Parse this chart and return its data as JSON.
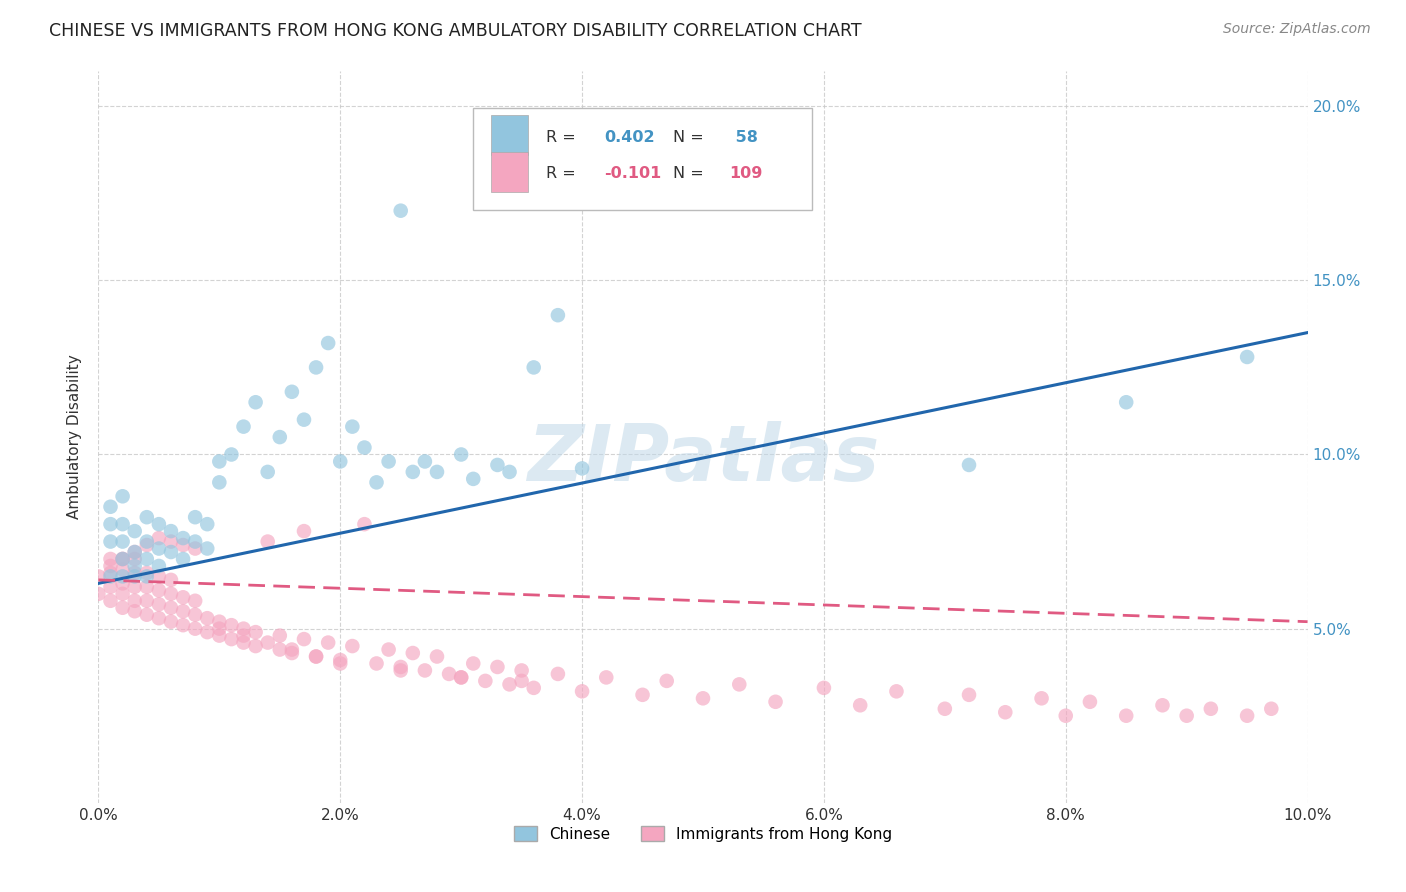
{
  "title": "CHINESE VS IMMIGRANTS FROM HONG KONG AMBULATORY DISABILITY CORRELATION CHART",
  "source": "Source: ZipAtlas.com",
  "ylabel": "Ambulatory Disability",
  "x_min": 0.0,
  "x_max": 0.1,
  "y_min": 0.0,
  "y_max": 0.21,
  "x_ticks": [
    0.0,
    0.02,
    0.04,
    0.06,
    0.08,
    0.1
  ],
  "y_ticks": [
    0.05,
    0.1,
    0.15,
    0.2
  ],
  "x_tick_labels": [
    "0.0%",
    "2.0%",
    "4.0%",
    "6.0%",
    "8.0%",
    "10.0%"
  ],
  "y_tick_labels": [
    "5.0%",
    "10.0%",
    "15.0%",
    "20.0%"
  ],
  "legend_label1": "Chinese",
  "legend_label2": "Immigrants from Hong Kong",
  "R1": 0.402,
  "N1": 58,
  "R2": -0.101,
  "N2": 109,
  "color_blue": "#92c5de",
  "color_pink": "#f4a6c0",
  "color_blue_line": "#2166ac",
  "color_pink_line": "#e05a82",
  "color_blue_text": "#4393c3",
  "color_pink_text": "#e05a82",
  "watermark": "ZIPatlas",
  "background_color": "#ffffff",
  "grid_color": "#c8c8c8",
  "blue_line_y0": 0.063,
  "blue_line_y1": 0.135,
  "pink_line_y0": 0.064,
  "pink_line_y1": 0.052,
  "chinese_x": [
    0.001,
    0.001,
    0.001,
    0.002,
    0.002,
    0.002,
    0.002,
    0.003,
    0.003,
    0.003,
    0.004,
    0.004,
    0.004,
    0.005,
    0.005,
    0.005,
    0.006,
    0.006,
    0.007,
    0.007,
    0.008,
    0.008,
    0.009,
    0.009,
    0.01,
    0.01,
    0.011,
    0.012,
    0.013,
    0.014,
    0.015,
    0.016,
    0.017,
    0.018,
    0.019,
    0.02,
    0.021,
    0.022,
    0.023,
    0.024,
    0.025,
    0.026,
    0.027,
    0.028,
    0.03,
    0.031,
    0.033,
    0.034,
    0.036,
    0.038,
    0.04,
    0.001,
    0.002,
    0.003,
    0.004,
    0.072,
    0.085,
    0.095
  ],
  "chinese_y": [
    0.075,
    0.08,
    0.085,
    0.07,
    0.075,
    0.08,
    0.088,
    0.068,
    0.072,
    0.078,
    0.07,
    0.075,
    0.082,
    0.068,
    0.073,
    0.08,
    0.072,
    0.078,
    0.07,
    0.076,
    0.075,
    0.082,
    0.073,
    0.08,
    0.092,
    0.098,
    0.1,
    0.108,
    0.115,
    0.095,
    0.105,
    0.118,
    0.11,
    0.125,
    0.132,
    0.098,
    0.108,
    0.102,
    0.092,
    0.098,
    0.17,
    0.095,
    0.098,
    0.095,
    0.1,
    0.093,
    0.097,
    0.095,
    0.125,
    0.14,
    0.096,
    0.065,
    0.065,
    0.065,
    0.065,
    0.097,
    0.115,
    0.128
  ],
  "hk_x": [
    0.0,
    0.0,
    0.001,
    0.001,
    0.001,
    0.001,
    0.002,
    0.002,
    0.002,
    0.002,
    0.002,
    0.003,
    0.003,
    0.003,
    0.003,
    0.003,
    0.004,
    0.004,
    0.004,
    0.004,
    0.005,
    0.005,
    0.005,
    0.005,
    0.006,
    0.006,
    0.006,
    0.006,
    0.007,
    0.007,
    0.007,
    0.008,
    0.008,
    0.008,
    0.009,
    0.009,
    0.01,
    0.01,
    0.011,
    0.011,
    0.012,
    0.012,
    0.013,
    0.013,
    0.014,
    0.015,
    0.015,
    0.016,
    0.017,
    0.017,
    0.018,
    0.019,
    0.02,
    0.021,
    0.022,
    0.023,
    0.024,
    0.025,
    0.026,
    0.027,
    0.028,
    0.029,
    0.03,
    0.031,
    0.032,
    0.033,
    0.034,
    0.035,
    0.036,
    0.038,
    0.04,
    0.042,
    0.045,
    0.047,
    0.05,
    0.053,
    0.056,
    0.06,
    0.063,
    0.066,
    0.07,
    0.072,
    0.075,
    0.078,
    0.08,
    0.082,
    0.085,
    0.088,
    0.09,
    0.092,
    0.095,
    0.097,
    0.001,
    0.002,
    0.003,
    0.004,
    0.005,
    0.006,
    0.007,
    0.008,
    0.01,
    0.012,
    0.014,
    0.016,
    0.018,
    0.02,
    0.025,
    0.03,
    0.035
  ],
  "hk_y": [
    0.06,
    0.065,
    0.058,
    0.062,
    0.066,
    0.07,
    0.056,
    0.06,
    0.063,
    0.067,
    0.07,
    0.055,
    0.058,
    0.062,
    0.066,
    0.07,
    0.054,
    0.058,
    0.062,
    0.066,
    0.053,
    0.057,
    0.061,
    0.065,
    0.052,
    0.056,
    0.06,
    0.064,
    0.051,
    0.055,
    0.059,
    0.05,
    0.054,
    0.058,
    0.049,
    0.053,
    0.048,
    0.052,
    0.047,
    0.051,
    0.046,
    0.05,
    0.045,
    0.049,
    0.075,
    0.044,
    0.048,
    0.043,
    0.078,
    0.047,
    0.042,
    0.046,
    0.041,
    0.045,
    0.08,
    0.04,
    0.044,
    0.039,
    0.043,
    0.038,
    0.042,
    0.037,
    0.036,
    0.04,
    0.035,
    0.039,
    0.034,
    0.038,
    0.033,
    0.037,
    0.032,
    0.036,
    0.031,
    0.035,
    0.03,
    0.034,
    0.029,
    0.033,
    0.028,
    0.032,
    0.027,
    0.031,
    0.026,
    0.03,
    0.025,
    0.029,
    0.025,
    0.028,
    0.025,
    0.027,
    0.025,
    0.027,
    0.068,
    0.07,
    0.072,
    0.074,
    0.076,
    0.075,
    0.074,
    0.073,
    0.05,
    0.048,
    0.046,
    0.044,
    0.042,
    0.04,
    0.038,
    0.036,
    0.035
  ]
}
